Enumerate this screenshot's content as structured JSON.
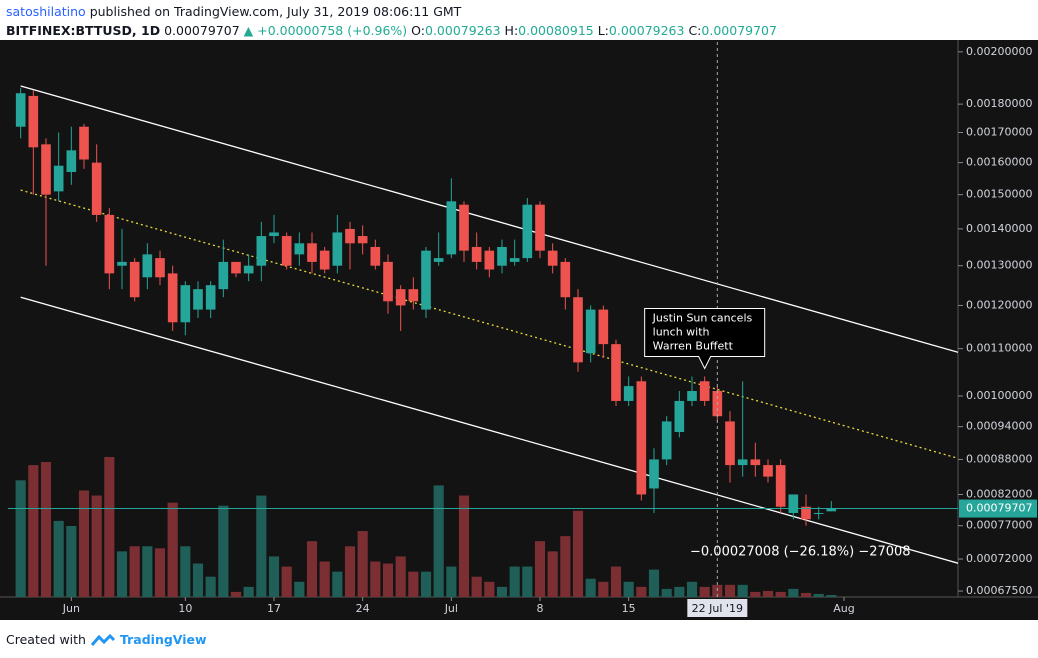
{
  "header": {
    "user": "satoshilatino",
    "published": "published on TradingView.com, July 31, 2019 08:06:11 GMT",
    "symbol": "BITFINEX:BTTUSD, 1D",
    "price": "0.00079707",
    "change": "▲ +0.00000758 (+0.96%)",
    "ohlc": [
      {
        "key": "O:",
        "value": "0.00079263"
      },
      {
        "key": "H:",
        "value": "0.00080915"
      },
      {
        "key": "L:",
        "value": "0.00079263"
      },
      {
        "key": "C:",
        "value": "0.00079707"
      }
    ]
  },
  "footer": {
    "created": "Created with",
    "brand": "TradingView"
  },
  "chart_data": {
    "type": "candlestick",
    "log_scale": true,
    "up_color": "#26a69a",
    "down_color": "#ef5350",
    "x": [
      "2019-05-28",
      "2019-05-29",
      "2019-05-30",
      "2019-05-31",
      "2019-06-01",
      "2019-06-02",
      "2019-06-03",
      "2019-06-04",
      "2019-06-05",
      "2019-06-06",
      "2019-06-07",
      "2019-06-08",
      "2019-06-09",
      "2019-06-10",
      "2019-06-11",
      "2019-06-12",
      "2019-06-13",
      "2019-06-14",
      "2019-06-15",
      "2019-06-16",
      "2019-06-17",
      "2019-06-18",
      "2019-06-19",
      "2019-06-20",
      "2019-06-21",
      "2019-06-22",
      "2019-06-23",
      "2019-06-24",
      "2019-06-25",
      "2019-06-26",
      "2019-06-27",
      "2019-06-28",
      "2019-06-29",
      "2019-06-30",
      "2019-07-01",
      "2019-07-02",
      "2019-07-03",
      "2019-07-04",
      "2019-07-05",
      "2019-07-06",
      "2019-07-07",
      "2019-07-08",
      "2019-07-09",
      "2019-07-10",
      "2019-07-11",
      "2019-07-12",
      "2019-07-13",
      "2019-07-14",
      "2019-07-15",
      "2019-07-16",
      "2019-07-17",
      "2019-07-18",
      "2019-07-19",
      "2019-07-20",
      "2019-07-21",
      "2019-07-22",
      "2019-07-23",
      "2019-07-24",
      "2019-07-25",
      "2019-07-26",
      "2019-07-27",
      "2019-07-28",
      "2019-07-29",
      "2019-07-30",
      "2019-07-31"
    ],
    "open": [
      0.00172,
      0.00183,
      0.00166,
      0.00151,
      0.00157,
      0.00172,
      0.0016,
      0.00144,
      0.0013,
      0.00131,
      0.00127,
      0.00132,
      0.00128,
      0.00116,
      0.00119,
      0.00119,
      0.00124,
      0.00131,
      0.00128,
      0.0013,
      0.00138,
      0.00138,
      0.00133,
      0.00136,
      0.00134,
      0.0013,
      0.0014,
      0.00138,
      0.00135,
      0.00131,
      0.00124,
      0.00124,
      0.00119,
      0.00131,
      0.00133,
      0.00147,
      0.00135,
      0.00134,
      0.0013,
      0.00131,
      0.00132,
      0.00147,
      0.00134,
      0.00131,
      0.00122,
      0.00109,
      0.00119,
      0.00111,
      0.00099,
      0.00103,
      0.00083,
      0.00088,
      0.00093,
      0.00099,
      0.00103,
      0.00101,
      0.00095,
      0.00087,
      0.00088,
      0.00087,
      0.00087,
      0.00079,
      0.0008,
      0.00079,
      0.00079263
    ],
    "high": [
      0.00186,
      0.00185,
      0.00168,
      0.0017,
      0.00172,
      0.00173,
      0.00166,
      0.00146,
      0.0014,
      0.00132,
      0.00136,
      0.00134,
      0.0013,
      0.00126,
      0.00126,
      0.00126,
      0.00137,
      0.00131,
      0.00133,
      0.00142,
      0.00144,
      0.00139,
      0.00139,
      0.00139,
      0.00135,
      0.00144,
      0.00142,
      0.00141,
      0.00137,
      0.00133,
      0.00125,
      0.00127,
      0.00135,
      0.00139,
      0.00155,
      0.00148,
      0.00139,
      0.00135,
      0.00137,
      0.00137,
      0.00149,
      0.00148,
      0.00136,
      0.00132,
      0.00124,
      0.0012,
      0.0012,
      0.00112,
      0.00104,
      0.00104,
      0.0009,
      0.00096,
      0.00101,
      0.00104,
      0.00104,
      0.00102,
      0.00097,
      0.00103,
      0.00091,
      0.00088,
      0.00088,
      0.00082,
      0.00082,
      0.0008,
      0.00080915
    ],
    "low": [
      0.00168,
      0.0015,
      0.0013,
      0.00148,
      0.00153,
      0.00158,
      0.00142,
      0.00124,
      0.00124,
      0.00121,
      0.00124,
      0.00125,
      0.00114,
      0.00113,
      0.00117,
      0.00117,
      0.00122,
      0.00127,
      0.00126,
      0.00126,
      0.00136,
      0.00129,
      0.0013,
      0.00128,
      0.00128,
      0.00128,
      0.00129,
      0.00133,
      0.00129,
      0.00118,
      0.00114,
      0.00119,
      0.00117,
      0.0013,
      0.00132,
      0.00131,
      0.00129,
      0.00127,
      0.00128,
      0.0013,
      0.00131,
      0.00132,
      0.00128,
      0.00119,
      0.00105,
      0.00107,
      0.00108,
      0.00098,
      0.00098,
      0.00081,
      0.00079,
      0.00087,
      0.00092,
      0.00098,
      0.00098,
      0.00095,
      0.00084,
      0.00085,
      0.00085,
      0.00084,
      0.00079,
      0.00078,
      0.00077,
      0.00078,
      0.00079263
    ],
    "close": [
      0.00184,
      0.00165,
      0.0015,
      0.00159,
      0.00164,
      0.00161,
      0.00144,
      0.00128,
      0.00131,
      0.00122,
      0.00133,
      0.00127,
      0.00116,
      0.00125,
      0.00124,
      0.00125,
      0.00131,
      0.00128,
      0.0013,
      0.00138,
      0.00139,
      0.0013,
      0.00136,
      0.00131,
      0.00129,
      0.00139,
      0.00136,
      0.00136,
      0.0013,
      0.00121,
      0.0012,
      0.00121,
      0.00134,
      0.00132,
      0.00148,
      0.00134,
      0.00131,
      0.00129,
      0.00135,
      0.00132,
      0.00147,
      0.00134,
      0.0013,
      0.00122,
      0.00107,
      0.00119,
      0.00111,
      0.00099,
      0.00102,
      0.00082,
      0.00088,
      0.00095,
      0.00099,
      0.00101,
      0.00099,
      0.00096,
      0.00087,
      0.00088,
      0.00087,
      0.00085,
      0.0008,
      0.00082,
      0.00078,
      0.00079,
      0.00079707
    ],
    "volume": [
      115,
      130,
      133,
      75,
      70,
      105,
      100,
      138,
      45,
      50,
      50,
      48,
      93,
      50,
      33,
      20,
      90,
      5,
      10,
      100,
      40,
      30,
      15,
      55,
      35,
      25,
      50,
      65,
      35,
      33,
      40,
      25,
      25,
      110,
      30,
      100,
      20,
      15,
      10,
      30,
      30,
      55,
      45,
      60,
      85,
      18,
      15,
      30,
      15,
      10,
      27,
      8,
      10,
      15,
      10,
      12,
      12,
      12,
      5,
      6,
      5,
      8,
      4,
      3,
      2
    ],
    "xlim": [
      "2019-05-27",
      "2019-08-10"
    ],
    "xticks": [
      {
        "value": "2019-06-01",
        "label": "Jun"
      },
      {
        "value": "2019-06-10",
        "label": "10"
      },
      {
        "value": "2019-06-17",
        "label": "17"
      },
      {
        "value": "2019-06-24",
        "label": "24"
      },
      {
        "value": "2019-07-01",
        "label": "Jul"
      },
      {
        "value": "2019-07-08",
        "label": "8"
      },
      {
        "value": "2019-07-15",
        "label": "15"
      },
      {
        "value": "2019-08-01",
        "label": "Aug"
      }
    ],
    "ylim": [
      0.000667,
      0.00204
    ],
    "yticks": [
      {
        "value": 0.002,
        "label": "0.00200000"
      },
      {
        "value": 0.0018,
        "label": "0.00180000"
      },
      {
        "value": 0.0017,
        "label": "0.00170000"
      },
      {
        "value": 0.0016,
        "label": "0.00160000"
      },
      {
        "value": 0.0015,
        "label": "0.00150000"
      },
      {
        "value": 0.0014,
        "label": "0.00140000"
      },
      {
        "value": 0.0013,
        "label": "0.00130000"
      },
      {
        "value": 0.0012,
        "label": "0.00120000"
      },
      {
        "value": 0.0011,
        "label": "0.00110000"
      },
      {
        "value": 0.001,
        "label": "0.00100000"
      },
      {
        "value": 0.00094,
        "label": "0.00094000"
      },
      {
        "value": 0.00088,
        "label": "0.00088000"
      },
      {
        "value": 0.00082,
        "label": "0.00082000"
      },
      {
        "value": 0.00077,
        "label": "0.00077000"
      },
      {
        "value": 0.00072,
        "label": "0.00072000"
      },
      {
        "value": 0.000675,
        "label": "0.00067500"
      }
    ],
    "last_price": 0.00079707,
    "crosshair": {
      "value": "2019-07-22",
      "label": "22 Jul '19"
    },
    "trendlines": [
      {
        "x": [
          "2019-05-28",
          "2019-08-10"
        ],
        "y": [
          0.001867,
          0.001092
        ],
        "color": "#ffffff",
        "dashed": false
      },
      {
        "x": [
          "2019-05-28",
          "2019-08-10"
        ],
        "y": [
          0.001514,
          0.000882
        ],
        "color": "#e6d93c",
        "dashed": true
      },
      {
        "x": [
          "2019-05-28",
          "2019-08-10"
        ],
        "y": [
          0.00122,
          0.000714
        ],
        "color": "#ffffff",
        "dashed": false
      }
    ],
    "annotation": {
      "x": "2019-07-21",
      "lines": [
        "Justin Sun cancels",
        "lunch with",
        "Warren Buffett"
      ]
    },
    "measure_label": "−0.00027008 (−26.18%) −27008"
  }
}
